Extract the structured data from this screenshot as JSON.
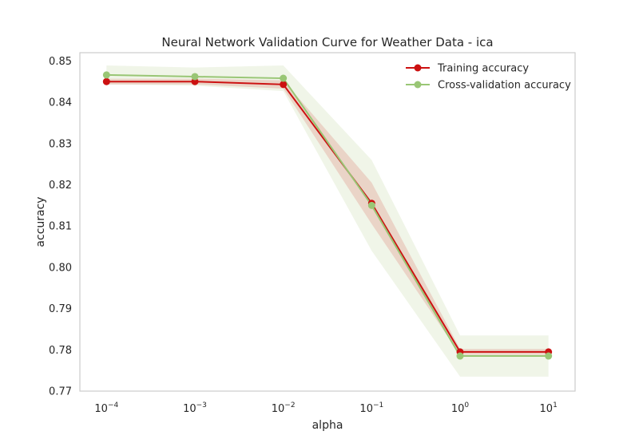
{
  "chart_data": {
    "type": "line",
    "title": "Neural Network Validation Curve for Weather Data - ica",
    "xlabel": "alpha",
    "ylabel": "accuracy",
    "x_scale": "log",
    "x": [
      0.0001,
      0.001,
      0.01,
      0.1,
      1,
      10
    ],
    "xlim": [
      5e-05,
      20
    ],
    "ylim": [
      0.77,
      0.852
    ],
    "x_ticks": [
      {
        "value": 0.0001,
        "base": "10",
        "exp": "−4"
      },
      {
        "value": 0.001,
        "base": "10",
        "exp": "−3"
      },
      {
        "value": 0.01,
        "base": "10",
        "exp": "−2"
      },
      {
        "value": 0.1,
        "base": "10",
        "exp": "−1"
      },
      {
        "value": 1,
        "base": "10",
        "exp": "0"
      },
      {
        "value": 10,
        "base": "10",
        "exp": "1"
      }
    ],
    "y_ticks": [
      {
        "value": 0.77,
        "label": "0.77"
      },
      {
        "value": 0.78,
        "label": "0.78"
      },
      {
        "value": 0.79,
        "label": "0.79"
      },
      {
        "value": 0.8,
        "label": "0.80"
      },
      {
        "value": 0.81,
        "label": "0.81"
      },
      {
        "value": 0.82,
        "label": "0.82"
      },
      {
        "value": 0.83,
        "label": "0.83"
      },
      {
        "value": 0.84,
        "label": "0.84"
      },
      {
        "value": 0.85,
        "label": "0.85"
      }
    ],
    "grid": false,
    "legend_position": "top-right",
    "series": [
      {
        "name": "Training accuracy",
        "color": "#cc1111",
        "band_color": "#e8c8bc",
        "values": [
          0.845,
          0.845,
          0.8443,
          0.8155,
          0.7795,
          0.7795
        ],
        "lower": [
          0.8443,
          0.8443,
          0.8433,
          0.8105,
          0.7788,
          0.7788
        ],
        "upper": [
          0.8457,
          0.8457,
          0.8453,
          0.8205,
          0.7802,
          0.7802
        ]
      },
      {
        "name": "Cross-validation accuracy",
        "color": "#99c675",
        "band_color": "#eef4e6",
        "values": [
          0.8466,
          0.8462,
          0.8458,
          0.815,
          0.7785,
          0.7785
        ],
        "lower": [
          0.8443,
          0.844,
          0.8427,
          0.804,
          0.7735,
          0.7735
        ],
        "upper": [
          0.8489,
          0.8484,
          0.8489,
          0.826,
          0.7835,
          0.7835
        ]
      }
    ]
  }
}
